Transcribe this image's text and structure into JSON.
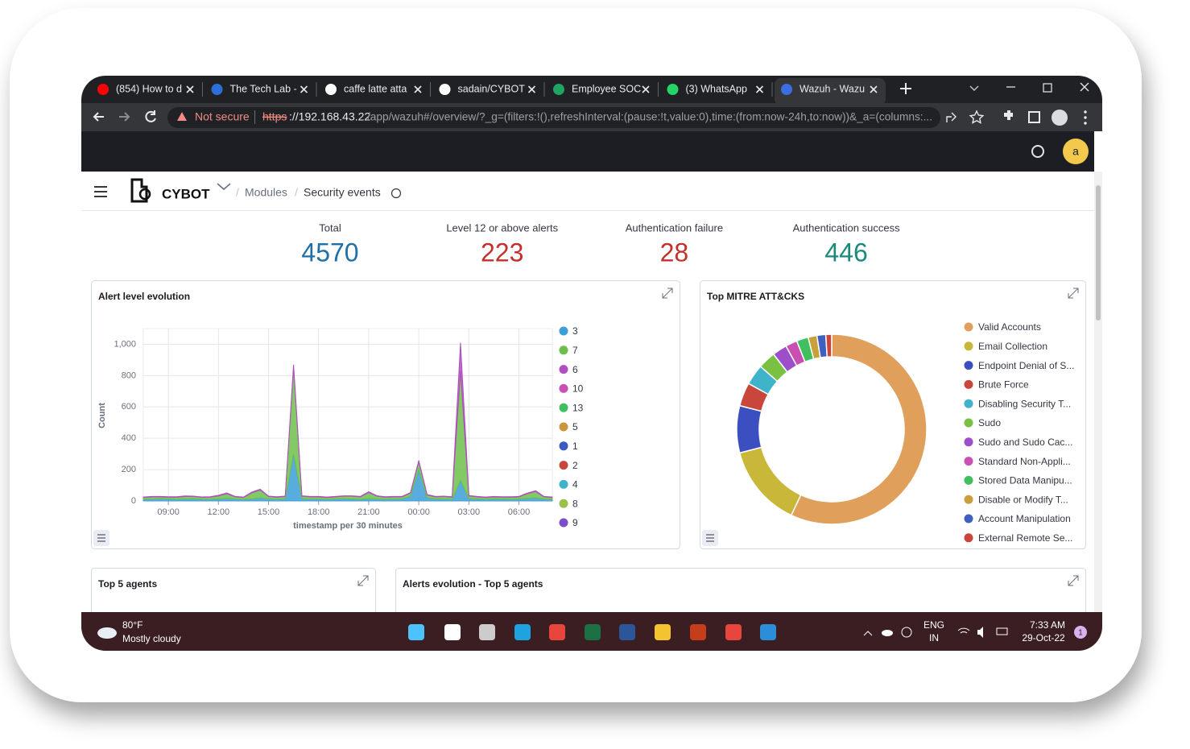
{
  "browser": {
    "tabs": [
      "(854) How to d",
      "The Tech Lab -",
      "caffe latte atta",
      "sadain/CYBOT",
      "Employee SOC",
      "(3) WhatsApp",
      "Wazuh - Wazu"
    ],
    "security": "Not secure",
    "url_scheme": "https",
    "url_host": "://192.168.43.22",
    "url_path": "/app/wazuh#/overview/?_g=(filters:!(),refreshInterval:(pause:!t,value:0),time:(from:now-24h,to:now))&_a=(columns:..."
  },
  "app": {
    "avatar": "a",
    "logo": "CYBOT",
    "breadcrumb": [
      "Modules",
      "Security events"
    ],
    "stats": [
      {
        "label": "Total",
        "value": 4570,
        "color": "#1f6fa8"
      },
      {
        "label": "Level 12 or above alerts",
        "value": 223,
        "color": "#c4302b"
      },
      {
        "label": "Authentication failure",
        "value": 28,
        "color": "#c4302b"
      },
      {
        "label": "Authentication success",
        "value": 446,
        "color": "#1a8a7a"
      }
    ],
    "alert_chart": {
      "type": "area",
      "title": "Alert level evolution",
      "y_label": "Count",
      "x_label": "timestamp per 30 minutes",
      "stacked": true,
      "xlim": [
        0,
        49
      ],
      "xticks": [
        {
          "value": 3,
          "label": "09:00"
        },
        {
          "value": 9,
          "label": "12:00"
        },
        {
          "value": 15,
          "label": "15:00"
        },
        {
          "value": 21,
          "label": "18:00"
        },
        {
          "value": 27,
          "label": "21:00"
        },
        {
          "value": 33,
          "label": "00:00"
        },
        {
          "value": 39,
          "label": "03:00"
        },
        {
          "value": 45,
          "label": "06:00"
        }
      ],
      "ylim": [
        0,
        1100
      ],
      "yticks": [
        0,
        200,
        400,
        600,
        800,
        {
          "value": 1000,
          "label": "1,000"
        }
      ],
      "grid": true,
      "series": [
        {
          "name": "3",
          "color": "#3b9fd8",
          "values": [
            10,
            12,
            14,
            12,
            10,
            12,
            14,
            11,
            10,
            12,
            16,
            12,
            10,
            12,
            20,
            12,
            10,
            14,
            300,
            14,
            12,
            12,
            10,
            12,
            14,
            12,
            10,
            14,
            12,
            10,
            12,
            12,
            30,
            200,
            20,
            12,
            12,
            10,
            130,
            14,
            12,
            10,
            12,
            12,
            10,
            12,
            16,
            20,
            12,
            10
          ]
        },
        {
          "name": "7",
          "color": "#6dbf4a",
          "values": [
            12,
            14,
            12,
            12,
            14,
            16,
            14,
            12,
            14,
            20,
            30,
            14,
            12,
            40,
            50,
            16,
            14,
            14,
            550,
            16,
            14,
            14,
            12,
            14,
            16,
            18,
            16,
            40,
            18,
            14,
            14,
            14,
            20,
            50,
            18,
            14,
            16,
            14,
            700,
            18,
            14,
            12,
            14,
            12,
            14,
            14,
            30,
            40,
            14,
            12
          ]
        },
        {
          "name": "6",
          "color": "#b04fc0",
          "values": [
            3,
            3,
            3,
            3,
            3,
            4,
            3,
            3,
            3,
            4,
            5,
            3,
            3,
            5,
            5,
            3,
            3,
            3,
            20,
            3,
            3,
            3,
            3,
            3,
            3,
            3,
            3,
            5,
            3,
            3,
            3,
            3,
            3,
            8,
            3,
            3,
            3,
            3,
            180,
            3,
            3,
            3,
            3,
            3,
            3,
            3,
            4,
            5,
            3,
            3
          ]
        },
        {
          "name": "10",
          "color": "#c94fb3"
        },
        {
          "name": "13",
          "color": "#3fbf5f"
        },
        {
          "name": "5",
          "color": "#c9973a"
        },
        {
          "name": "1",
          "color": "#3c5bc0"
        },
        {
          "name": "2",
          "color": "#c9463d"
        },
        {
          "name": "4",
          "color": "#3fb3c9"
        },
        {
          "name": "8",
          "color": "#9ac14a"
        },
        {
          "name": "9",
          "color": "#7a4fc9"
        }
      ]
    },
    "mitre_chart": {
      "type": "donut",
      "title": "Top MITRE ATT&CKS",
      "categories": [
        "Valid Accounts",
        "Email Collection",
        "Endpoint Denial of S...",
        "Brute Force",
        "Disabling Security T...",
        "Sudo",
        "Sudo and Sudo Cac...",
        "Standard Non-Appli...",
        "Stored Data Manipu...",
        "Disable or Modify T...",
        "Account Manipulation",
        "External Remote Se..."
      ],
      "values": [
        57,
        14,
        8,
        4,
        3.5,
        3,
        2.5,
        2,
        2,
        1.5,
        1.5,
        1
      ],
      "colors": [
        "#e0a05c",
        "#c9b73a",
        "#3c4fc0",
        "#c9463d",
        "#3fb3c9",
        "#7ac143",
        "#9c4fc9",
        "#c94fb3",
        "#3fbf5f",
        "#c9a03a",
        "#4060c0",
        "#c9463d"
      ]
    },
    "panels": [
      "Top 5 agents",
      "Alerts evolution - Top 5 agents"
    ]
  },
  "taskbar": {
    "temperature": "80°F",
    "weather": "Mostly cloudy",
    "language": "ENG",
    "region": "IN",
    "time": "7:33 AM",
    "date": "29-Oct-22",
    "notifications": "1"
  }
}
